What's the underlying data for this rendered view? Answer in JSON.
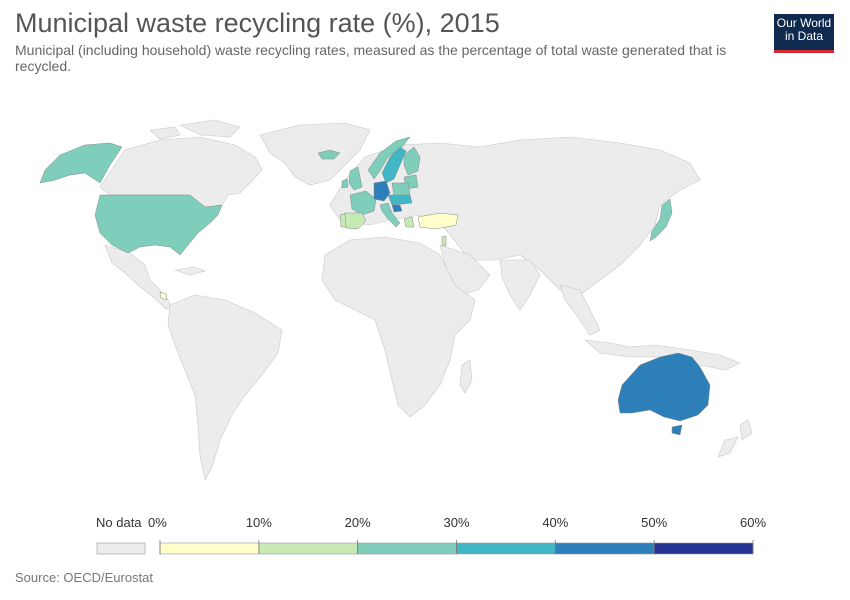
{
  "title": "Municipal waste recycling rate (%), 2015",
  "subtitle": "Municipal (including household) waste recycling rates, measured as the percentage of total waste generated that is recycled.",
  "logo": {
    "line1": "Our World",
    "line2": "in Data"
  },
  "source": "Source: OECD/Eurostat",
  "legend": {
    "no_data_label": "No data",
    "no_data_color": "#ececec",
    "ticks": [
      "0%",
      "10%",
      "20%",
      "30%",
      "40%",
      "50%",
      "60%"
    ],
    "bins": [
      {
        "from": 0,
        "to": 10,
        "color": "#ffffcc"
      },
      {
        "from": 10,
        "to": 20,
        "color": "#c7e9b4"
      },
      {
        "from": 20,
        "to": 30,
        "color": "#7fcdbb"
      },
      {
        "from": 30,
        "to": 40,
        "color": "#41b6c4"
      },
      {
        "from": 40,
        "to": 50,
        "color": "#2c7fb8"
      },
      {
        "from": 50,
        "to": 60,
        "color": "#253494"
      }
    ]
  },
  "map_data": {
    "type": "choropleth",
    "year": 2015,
    "regions_with_data": [
      {
        "region": "United States",
        "bin": "20-30%",
        "color": "#7fcdbb"
      },
      {
        "region": "Alaska",
        "bin": "20-30%",
        "color": "#7fcdbb"
      },
      {
        "region": "Costa Rica",
        "bin": "0-10%",
        "color": "#ffffcc"
      },
      {
        "region": "Iceland",
        "bin": "20-30%",
        "color": "#7fcdbb"
      },
      {
        "region": "Ireland",
        "bin": "20-30%",
        "color": "#7fcdbb"
      },
      {
        "region": "United Kingdom",
        "bin": "20-30%",
        "color": "#7fcdbb"
      },
      {
        "region": "Norway",
        "bin": "20-30%",
        "color": "#7fcdbb"
      },
      {
        "region": "Sweden",
        "bin": "30-40%",
        "color": "#41b6c4"
      },
      {
        "region": "Finland",
        "bin": "20-30%",
        "color": "#7fcdbb"
      },
      {
        "region": "Baltics",
        "bin": "20-30%",
        "color": "#7fcdbb"
      },
      {
        "region": "France",
        "bin": "20-30%",
        "color": "#7fcdbb"
      },
      {
        "region": "Spain",
        "bin": "10-20%",
        "color": "#c7e9b4"
      },
      {
        "region": "Portugal",
        "bin": "10-20%",
        "color": "#c7e9b4"
      },
      {
        "region": "Italy",
        "bin": "20-30%",
        "color": "#7fcdbb"
      },
      {
        "region": "Germany",
        "bin": "40-50%",
        "color": "#2c7fb8"
      },
      {
        "region": "Poland",
        "bin": "20-30%",
        "color": "#7fcdbb"
      },
      {
        "region": "Central Europe",
        "bin": "30-40%",
        "color": "#41b6c4"
      },
      {
        "region": "Slovenia",
        "bin": "40-50%",
        "color": "#2c7fb8"
      },
      {
        "region": "Greece",
        "bin": "10-20%",
        "color": "#c7e9b4"
      },
      {
        "region": "Turkey",
        "bin": "0-10%",
        "color": "#ffffcc"
      },
      {
        "region": "Israel",
        "bin": "10-20%",
        "color": "#c7e9b4"
      },
      {
        "region": "Japan",
        "bin": "20-30%",
        "color": "#7fcdbb"
      },
      {
        "region": "Australia",
        "bin": "40-50%",
        "color": "#2c7fb8"
      }
    ]
  }
}
